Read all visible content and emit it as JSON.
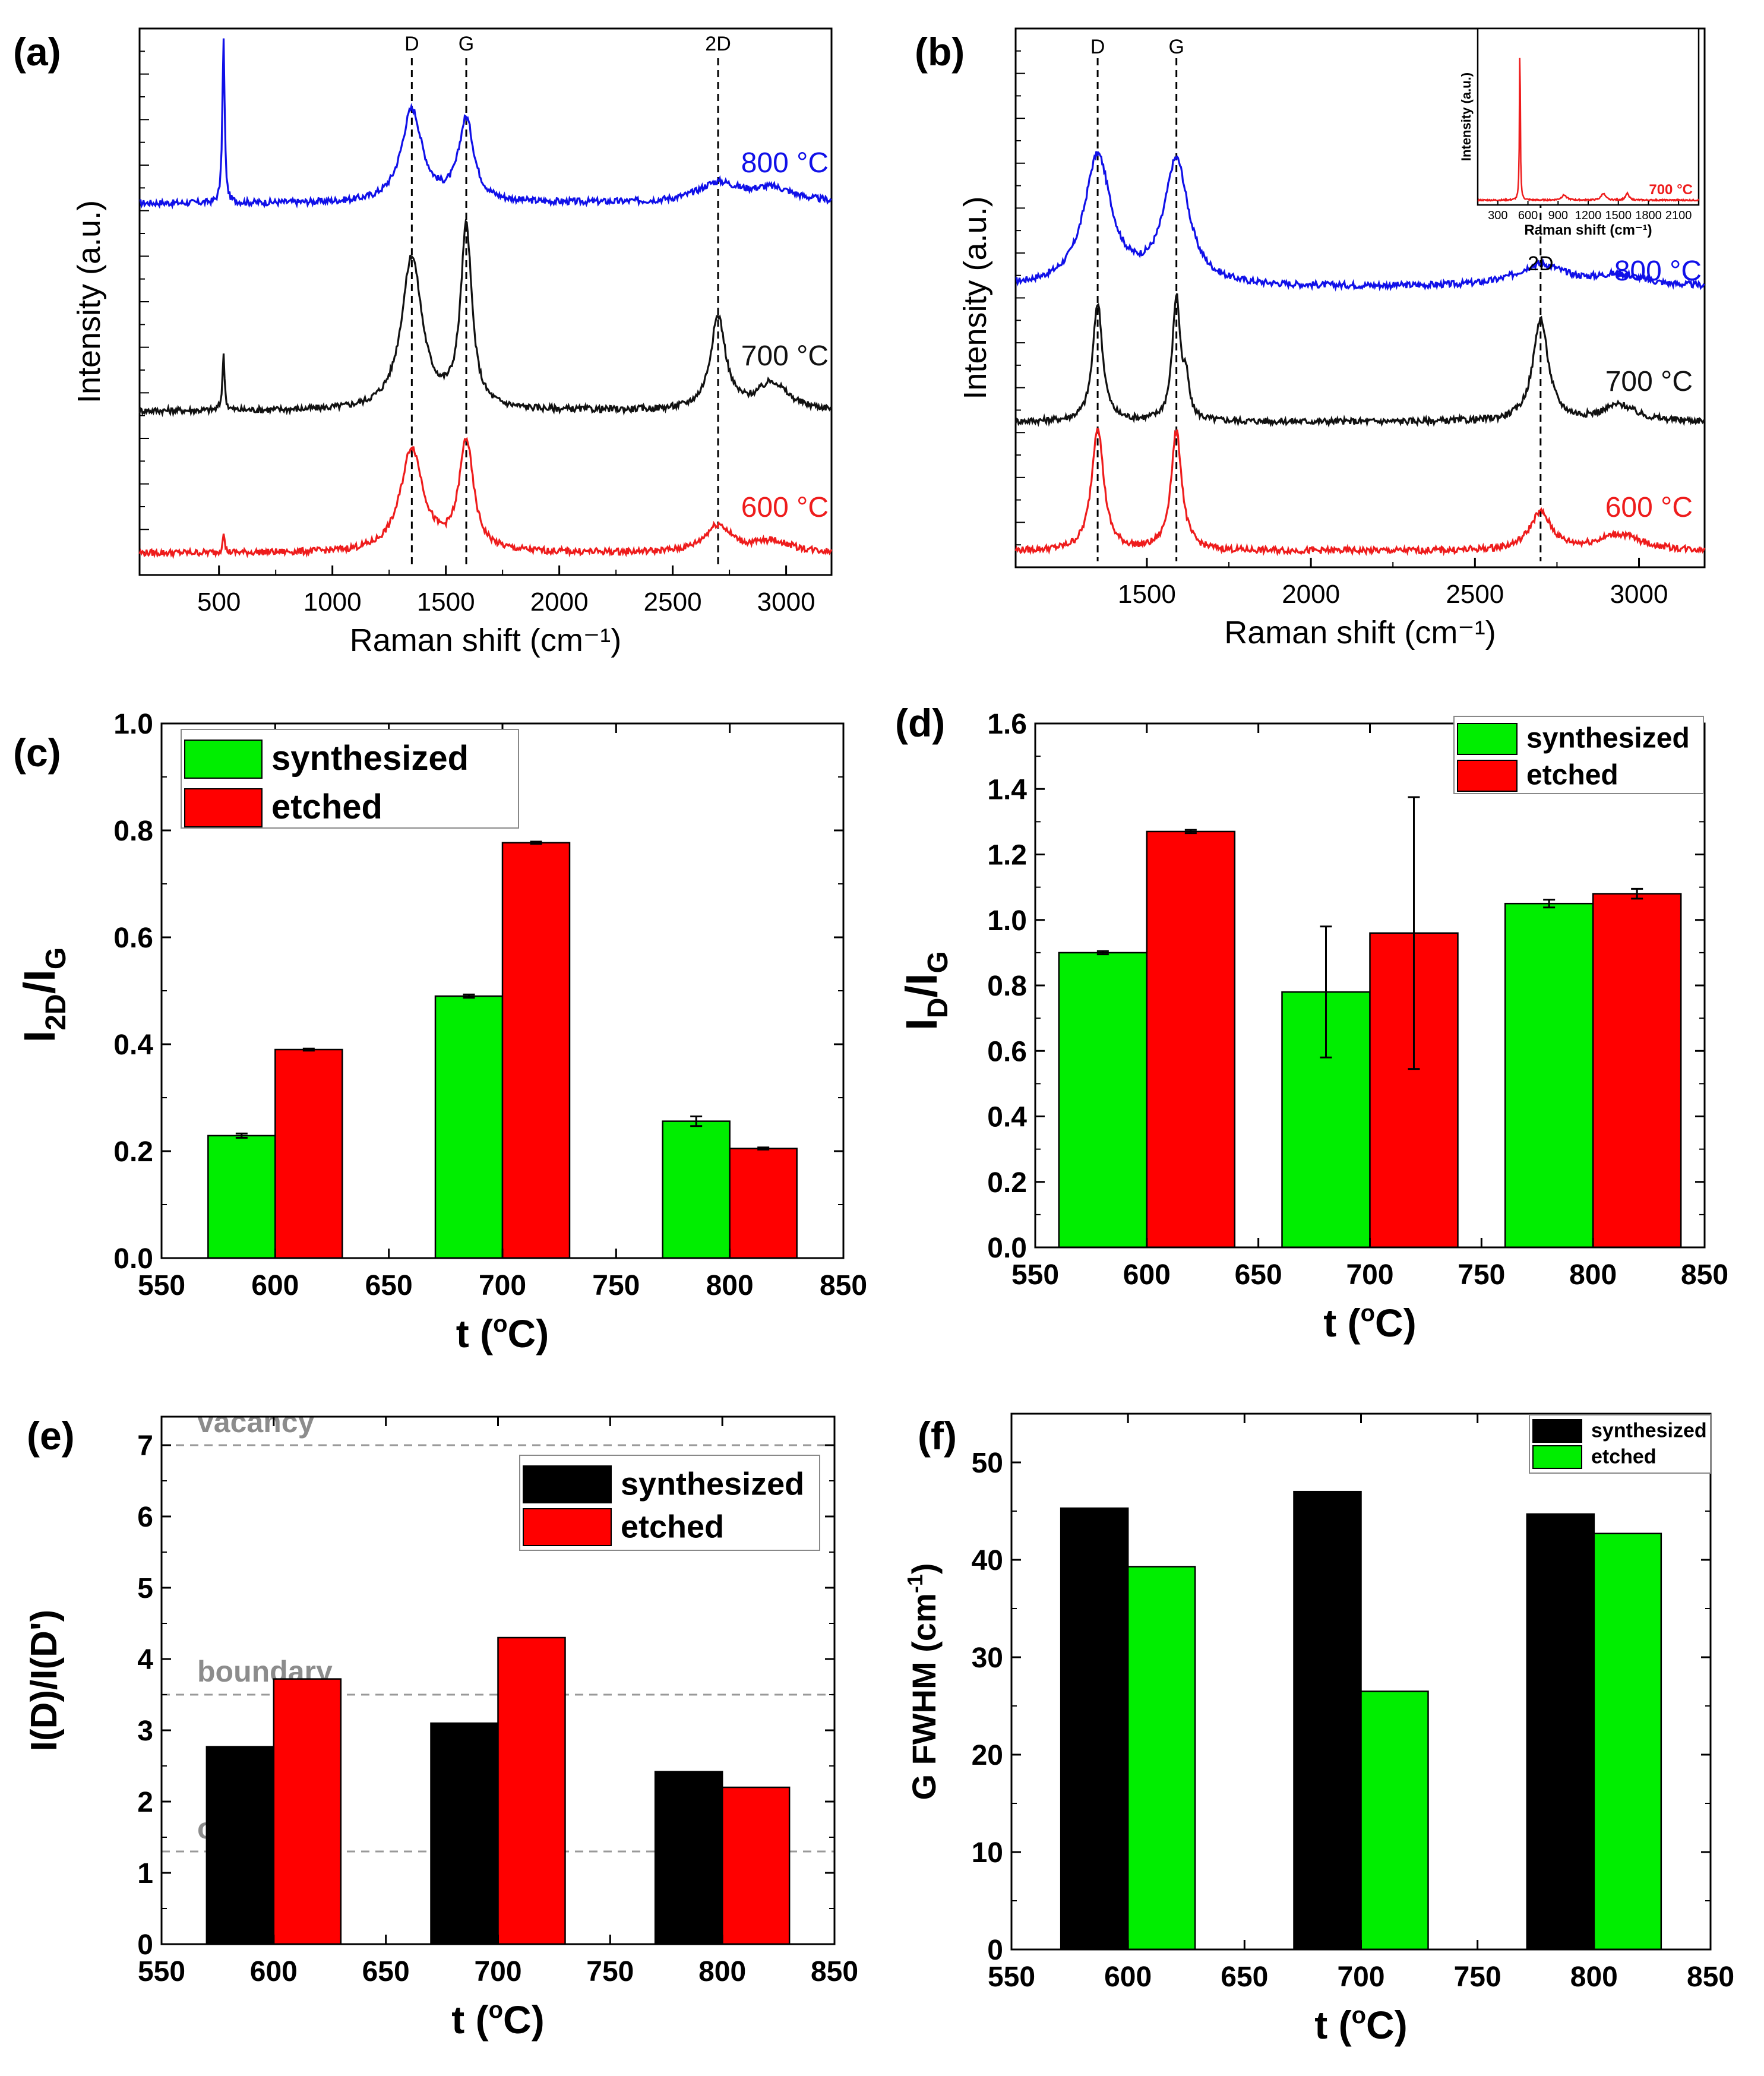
{
  "chart_data": [
    {
      "panel": "(a)",
      "type": "line",
      "xlabel": "Raman shift (cm⁻¹)",
      "ylabel": "Intensity (a.u.)",
      "xlim": [
        150,
        3200
      ],
      "xticks": [
        500,
        1000,
        1500,
        2000,
        2500,
        3000
      ],
      "ylim": [
        0,
        1
      ],
      "lines": [
        {
          "label": "D",
          "x": 1350
        },
        {
          "label": "G",
          "x": 1590
        },
        {
          "label": "2D",
          "x": 2700
        }
      ],
      "series": [
        {
          "name": "800 °C",
          "color": "#1010e8",
          "baseline": 0.68,
          "peaks": [
            {
              "c": 520,
              "h": 0.3,
              "w": 6
            },
            {
              "c": 1350,
              "h": 0.17,
              "w": 55
            },
            {
              "c": 1590,
              "h": 0.15,
              "w": 40
            },
            {
              "c": 2700,
              "h": 0.035,
              "w": 110
            },
            {
              "c": 2940,
              "h": 0.025,
              "w": 120
            }
          ]
        },
        {
          "name": "700 °C",
          "color": "#111111",
          "baseline": 0.3,
          "peaks": [
            {
              "c": 520,
              "h": 0.1,
              "w": 6
            },
            {
              "c": 1350,
              "h": 0.28,
              "w": 55
            },
            {
              "c": 1590,
              "h": 0.33,
              "w": 30
            },
            {
              "c": 2700,
              "h": 0.17,
              "w": 40
            },
            {
              "c": 2940,
              "h": 0.05,
              "w": 80
            }
          ]
        },
        {
          "name": "600 °C",
          "color": "#ee1c1c",
          "baseline": 0.04,
          "peaks": [
            {
              "c": 520,
              "h": 0.04,
              "w": 5
            },
            {
              "c": 1350,
              "h": 0.19,
              "w": 60
            },
            {
              "c": 1590,
              "h": 0.2,
              "w": 38
            },
            {
              "c": 2700,
              "h": 0.05,
              "w": 70
            },
            {
              "c": 2940,
              "h": 0.02,
              "w": 100
            }
          ]
        }
      ]
    },
    {
      "panel": "(b)",
      "type": "line",
      "xlabel": "Raman shift (cm⁻¹)",
      "ylabel": "Intensity (a.u.)",
      "xlim": [
        1100,
        3200
      ],
      "xticks": [
        1500,
        2000,
        2500,
        3000
      ],
      "ylim": [
        0,
        1
      ],
      "lines": [
        {
          "label": "D",
          "x": 1350
        },
        {
          "label": "G",
          "x": 1590
        },
        {
          "label": "2D",
          "x": 2700
        }
      ],
      "series": [
        {
          "name": "800 °C",
          "color": "#1010e8",
          "baseline": 0.52,
          "peaks": [
            {
              "c": 1350,
              "h": 0.24,
              "w": 50
            },
            {
              "c": 1590,
              "h": 0.23,
              "w": 45
            },
            {
              "c": 2700,
              "h": 0.04,
              "w": 90
            },
            {
              "c": 2940,
              "h": 0.02,
              "w": 90
            }
          ]
        },
        {
          "name": "700 °C",
          "color": "#111111",
          "baseline": 0.27,
          "peaks": [
            {
              "c": 1350,
              "h": 0.22,
              "w": 18
            },
            {
              "c": 1590,
              "h": 0.23,
              "w": 15
            },
            {
              "c": 1620,
              "h": 0.06,
              "w": 10
            },
            {
              "c": 2700,
              "h": 0.19,
              "w": 28
            },
            {
              "c": 2940,
              "h": 0.03,
              "w": 60
            }
          ]
        },
        {
          "name": "600 °C",
          "color": "#ee1c1c",
          "baseline": 0.03,
          "peaks": [
            {
              "c": 1350,
              "h": 0.23,
              "w": 22
            },
            {
              "c": 1590,
              "h": 0.22,
              "w": 20
            },
            {
              "c": 2700,
              "h": 0.07,
              "w": 40
            },
            {
              "c": 2940,
              "h": 0.03,
              "w": 80
            }
          ]
        }
      ],
      "inset": {
        "xlabel": "Raman shift (cm⁻¹)",
        "ylabel": "Intensity (a.u.)",
        "label": "700 °C",
        "color": "#ee1c1c",
        "xlim": [
          100,
          2300
        ],
        "xticks": [
          300,
          600,
          900,
          1200,
          1500,
          1800,
          2100
        ],
        "peaks": [
          {
            "c": 520,
            "h": 0.97,
            "w": 5
          },
          {
            "c": 960,
            "h": 0.03,
            "w": 30
          },
          {
            "c": 1350,
            "h": 0.04,
            "w": 25
          },
          {
            "c": 1590,
            "h": 0.04,
            "w": 20
          }
        ]
      }
    },
    {
      "panel": "(c)",
      "type": "bar",
      "categories": [
        600,
        700,
        800
      ],
      "xlabel": "t (°C)",
      "ylabel": "I2D/IG",
      "xlim": [
        550,
        850
      ],
      "xticks": [
        550,
        600,
        650,
        700,
        750,
        800,
        850
      ],
      "ylim": [
        0,
        1.0
      ],
      "yticks": [
        0.0,
        0.2,
        0.4,
        0.6,
        0.8,
        1.0
      ],
      "series": [
        {
          "name": "synthesized",
          "color": "#00ee00",
          "values": [
            0.229,
            0.49,
            0.256
          ],
          "errors": [
            0.004,
            0.003,
            0.009
          ]
        },
        {
          "name": "etched",
          "color": "#ff0000",
          "values": [
            0.39,
            0.777,
            0.205
          ],
          "errors": [
            0.002,
            0.002,
            0.002
          ]
        }
      ]
    },
    {
      "panel": "(d)",
      "type": "bar",
      "categories": [
        600,
        700,
        800
      ],
      "xlabel": "t (°C)",
      "ylabel": "ID/IG",
      "xlim": [
        550,
        850
      ],
      "xticks": [
        550,
        600,
        650,
        700,
        750,
        800,
        850
      ],
      "ylim": [
        0,
        1.6
      ],
      "yticks": [
        0.0,
        0.2,
        0.4,
        0.6,
        0.8,
        1.0,
        1.2,
        1.4,
        1.6
      ],
      "series": [
        {
          "name": "synthesized",
          "color": "#00ee00",
          "values": [
            0.9,
            0.78,
            1.05
          ],
          "errors": [
            0.005,
            0.2,
            0.012
          ]
        },
        {
          "name": "etched",
          "color": "#ff0000",
          "values": [
            1.27,
            0.96,
            1.08
          ],
          "errors": [
            0.005,
            0.415,
            0.015
          ]
        }
      ]
    },
    {
      "panel": "(e)",
      "type": "bar",
      "categories": [
        600,
        700,
        800
      ],
      "xlabel": "t (°C)",
      "ylabel": "I(D)/I(D')",
      "xlim": [
        550,
        850
      ],
      "xticks": [
        550,
        600,
        650,
        700,
        750,
        800,
        850
      ],
      "ylim": [
        0,
        7.4
      ],
      "yticks": [
        0,
        1,
        2,
        3,
        4,
        5,
        6,
        7
      ],
      "series": [
        {
          "name": "synthesized",
          "color": "#000000",
          "values": [
            2.77,
            3.1,
            2.42
          ]
        },
        {
          "name": "etched",
          "color": "#ff0000",
          "values": [
            3.72,
            4.3,
            2.2
          ]
        }
      ],
      "reference_lines": [
        {
          "label": "vacancy",
          "y": 7.0
        },
        {
          "label": "boundary",
          "y": 3.5
        },
        {
          "label": "on-site",
          "y": 1.3
        }
      ]
    },
    {
      "panel": "(f)",
      "type": "bar",
      "categories": [
        600,
        700,
        800
      ],
      "xlabel": "t (°C)",
      "ylabel": "G FWHM (cm⁻¹)",
      "xlim": [
        550,
        850
      ],
      "xticks": [
        550,
        600,
        650,
        700,
        750,
        800,
        850
      ],
      "ylim": [
        0,
        55
      ],
      "yticks": [
        0,
        10,
        20,
        30,
        40,
        50
      ],
      "series": [
        {
          "name": "synthesized",
          "color": "#000000",
          "values": [
            45.3,
            47.0,
            44.7
          ]
        },
        {
          "name": "etched",
          "color": "#00ee00",
          "values": [
            39.3,
            26.5,
            42.7
          ]
        }
      ]
    }
  ]
}
